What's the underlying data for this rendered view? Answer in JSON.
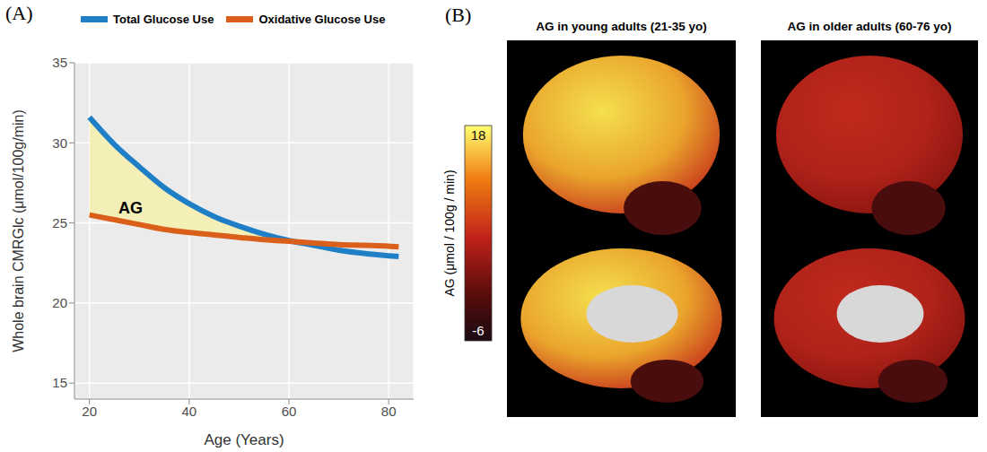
{
  "chart_data": {
    "type": "line",
    "panel_label": "(A)",
    "x": [
      20,
      25,
      30,
      35,
      40,
      45,
      50,
      55,
      60,
      65,
      70,
      75,
      80,
      82
    ],
    "series": [
      {
        "name": "Total Glucose Use",
        "color": "#1f7fc6",
        "values": [
          31.6,
          29.9,
          28.5,
          27.2,
          26.2,
          25.4,
          24.8,
          24.3,
          23.9,
          23.6,
          23.3,
          23.1,
          22.95,
          22.9
        ]
      },
      {
        "name": "Oxidative Glucose Use",
        "color": "#d95f1a",
        "values": [
          25.5,
          25.2,
          24.9,
          24.6,
          24.4,
          24.25,
          24.1,
          23.95,
          23.85,
          23.75,
          23.65,
          23.6,
          23.55,
          23.5
        ]
      }
    ],
    "annotation": "AG",
    "x_label": "Age (Years)",
    "y_label": "Whole brain CMRGlc (μmol/100g/min)",
    "xlim": [
      17,
      85
    ],
    "xticks": [
      20,
      40,
      60,
      80
    ],
    "ylim": [
      14,
      35
    ],
    "yticks": [
      15,
      20,
      25,
      30,
      35
    ],
    "grid": true,
    "legend": "top"
  },
  "panel_b": {
    "panel_label": "(B)",
    "maps": [
      {
        "title": "AG in young adults (21-35 yo)"
      },
      {
        "title": "AG in older adults (60-76 yo)"
      }
    ],
    "colorbar": {
      "label": "AG (μmol / 100g / min)",
      "range": [
        -6,
        18
      ],
      "ticks": [
        -6,
        18
      ]
    }
  }
}
